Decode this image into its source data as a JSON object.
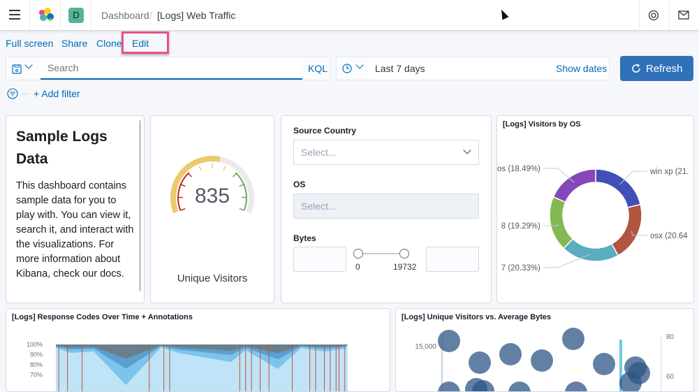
{
  "header": {
    "breadcrumb_root": "Dashboard",
    "breadcrumb_current": "[Logs] Web Traffic",
    "avatar_letter": "D",
    "avatar_color": "#54b399"
  },
  "menu": {
    "full_screen": "Full screen",
    "share": "Share",
    "clone": "Clone",
    "edit": "Edit",
    "highlight_color": "#e8508a"
  },
  "query": {
    "search_placeholder": "Search",
    "language": "KQL",
    "time_range": "Last 7 days",
    "show_dates": "Show dates",
    "refresh": "Refresh",
    "add_filter": "+ Add filter",
    "accent": "#3071b8"
  },
  "markdown": {
    "title": "Sample Logs Data",
    "body": "This dashboard contains sample data for you to play with. You can view it, search it, and interact with the visualizations. For more information about Kibana, check our docs."
  },
  "gauge": {
    "value": "835",
    "label": "Unique Visitors",
    "fill_fraction": 0.55
  },
  "controls": {
    "source_country_label": "Source Country",
    "source_country_placeholder": "Select...",
    "os_label": "OS",
    "os_placeholder": "Select...",
    "bytes_label": "Bytes",
    "bytes_min": "0",
    "bytes_max": "19732"
  },
  "chart_data": [
    {
      "type": "pie",
      "title": "[Logs] Visitors by OS",
      "donut": true,
      "slices": [
        {
          "label": "win xp (21.",
          "value": 21.25,
          "color": "#4050b8"
        },
        {
          "label": "osx (20.64",
          "value": 20.64,
          "color": "#b05540"
        },
        {
          "label": "7 (20.33%)",
          "value": 20.33,
          "color": "#5aacbf"
        },
        {
          "label": "8 (19.29%)",
          "value": 19.29,
          "color": "#84b852"
        },
        {
          "label": "os (18.49%)",
          "value": 18.49,
          "color": "#8448b8"
        }
      ]
    },
    {
      "type": "area",
      "title": "[Logs] Response Codes Over Time + Annotations",
      "y_ticks": [
        "100%",
        "90%",
        "80%",
        "70%"
      ],
      "stacked": "percent"
    },
    {
      "type": "scatter",
      "title": "[Logs] Unique Visitors vs. Average Bytes",
      "y_ticks_left": [
        "15,000"
      ],
      "y_ticks_right": [
        "80",
        "60"
      ]
    }
  ]
}
